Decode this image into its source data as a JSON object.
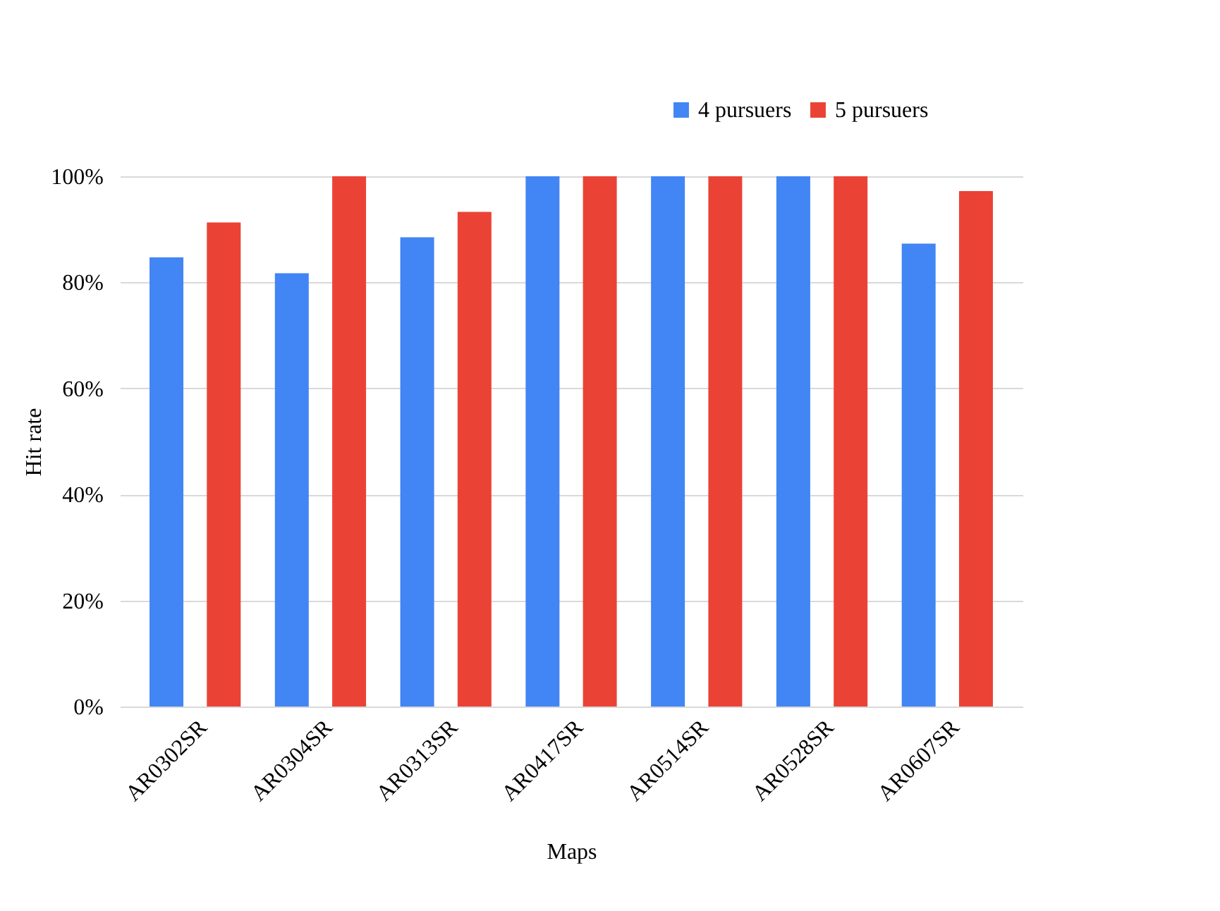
{
  "chart_data": {
    "type": "bar",
    "xlabel": "Maps",
    "ylabel": "Hit rate",
    "categories": [
      "AR0302SR",
      "AR0304SR",
      "AR0313SR",
      "AR0417SR",
      "AR0514SR",
      "AR0528SR",
      "AR0607SR"
    ],
    "series": [
      {
        "name": "4 pursuers",
        "color": "#4285f4",
        "values": [
          84.7,
          81.7,
          88.5,
          100,
          100,
          100,
          87.3
        ]
      },
      {
        "name": "5 pursuers",
        "color": "#ea4335",
        "values": [
          91.3,
          100,
          93.3,
          100,
          100,
          100,
          97.2
        ]
      }
    ],
    "ylim": [
      0,
      100
    ],
    "yticks": [
      {
        "value": 0,
        "label": "0%"
      },
      {
        "value": 20,
        "label": "20%"
      },
      {
        "value": 40,
        "label": "40%"
      },
      {
        "value": 60,
        "label": "60%"
      },
      {
        "value": 80,
        "label": "80%"
      },
      {
        "value": 100,
        "label": "100%"
      }
    ],
    "grid": "y",
    "legend": "top right"
  }
}
